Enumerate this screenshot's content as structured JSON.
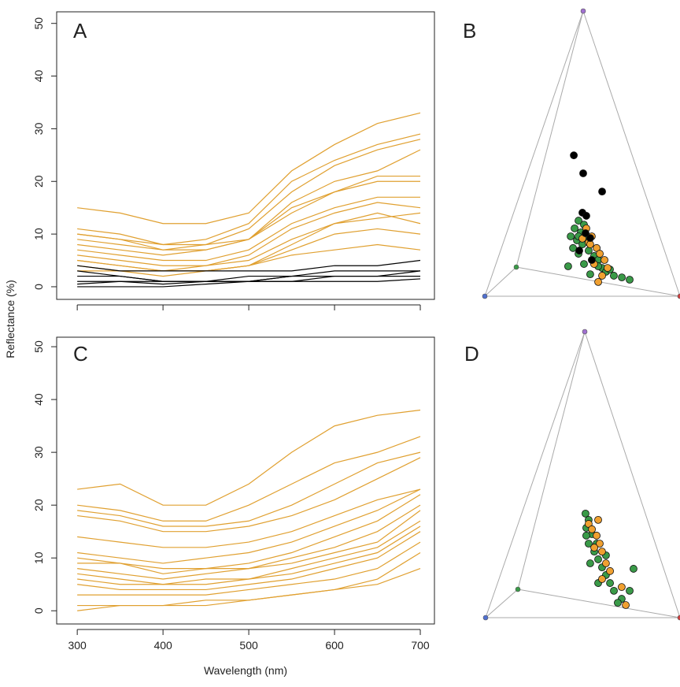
{
  "chart_data": [
    {
      "type": "line",
      "title": "A",
      "ylabel": "Reflectance (%)",
      "x": [
        300,
        350,
        400,
        450,
        500,
        550,
        600,
        650,
        700
      ],
      "xlim": [
        276,
        716.5
      ],
      "ylim": [
        -2.4,
        52.2
      ],
      "xticks": [
        300,
        400,
        500,
        600,
        700
      ],
      "xtick_labels": false,
      "yticks": [
        0,
        10,
        20,
        30,
        40,
        50
      ],
      "series": [
        {
          "color": "#e0a030",
          "values": [
            15,
            14,
            12,
            12,
            14,
            22,
            27,
            31,
            33
          ]
        },
        {
          "color": "#e0a030",
          "values": [
            11,
            10,
            8,
            9,
            12,
            20,
            24,
            27,
            29
          ]
        },
        {
          "color": "#e0a030",
          "values": [
            10,
            9,
            8,
            8,
            11,
            18,
            23,
            26,
            28
          ]
        },
        {
          "color": "#e0a030",
          "values": [
            9,
            8,
            7,
            7,
            9,
            16,
            20,
            22,
            26
          ]
        },
        {
          "color": "#e0a030",
          "values": [
            8,
            7,
            6,
            7,
            9,
            14,
            18,
            21,
            21
          ]
        },
        {
          "color": "#e0a030",
          "values": [
            7,
            6,
            5,
            5,
            7,
            12,
            15,
            17,
            17
          ]
        },
        {
          "color": "#e0a030",
          "values": [
            6,
            5,
            4,
            4,
            6,
            11,
            14,
            16,
            15
          ]
        },
        {
          "color": "#e0a030",
          "values": [
            5,
            4,
            3,
            4,
            5,
            9,
            12,
            13,
            14
          ]
        },
        {
          "color": "#e0a030",
          "values": [
            4,
            3,
            3,
            3,
            4,
            7,
            10,
            11,
            10
          ]
        },
        {
          "color": "#e0a030",
          "values": [
            3,
            3,
            2,
            3,
            4,
            6,
            7,
            8,
            7
          ]
        },
        {
          "color": "#e0a030",
          "values": [
            10,
            9,
            7,
            8,
            9,
            15,
            18,
            20,
            20
          ]
        },
        {
          "color": "#e0a030",
          "values": [
            5,
            4,
            3,
            3,
            4,
            8,
            12,
            14,
            12
          ]
        },
        {
          "color": "#000000",
          "values": [
            4,
            3,
            3,
            3,
            3,
            3,
            4,
            4,
            5
          ]
        },
        {
          "color": "#000000",
          "values": [
            2,
            2,
            1,
            1,
            2,
            2,
            3,
            3,
            3
          ]
        },
        {
          "color": "#000000",
          "values": [
            1,
            1,
            0.5,
            1,
            1,
            1,
            2,
            2,
            2
          ]
        },
        {
          "color": "#000000",
          "values": [
            0.5,
            1,
            1,
            1,
            1,
            2,
            2,
            2,
            3
          ]
        },
        {
          "color": "#000000",
          "values": [
            0,
            0,
            0,
            0.5,
            1,
            1,
            1,
            1,
            1.5
          ]
        },
        {
          "color": "#000000",
          "values": [
            3,
            2,
            1,
            1,
            1,
            2,
            2,
            2,
            2
          ]
        }
      ]
    },
    {
      "type": "scatter",
      "title": "B",
      "xlim": [
        0,
        1
      ],
      "ylim": [
        0,
        1
      ],
      "series": [
        {
          "color": "#3a9a48",
          "x": [
            0.48,
            0.508,
            0.46,
            0.492,
            0.52,
            0.472,
            0.5,
            0.452,
            0.532,
            0.48,
            0.56,
            0.581,
            0.508,
            0.427,
            0.601,
            0.621,
            0.54,
            0.661,
            0.702,
            0.742,
            0.48,
            0.44,
            0.581,
            0.641
          ],
          "values": [
            0.265,
            0.251,
            0.238,
            0.224,
            0.21,
            0.196,
            0.182,
            0.169,
            0.16,
            0.149,
            0.141,
            0.127,
            0.113,
            0.105,
            0.099,
            0.086,
            0.077,
            0.072,
            0.066,
            0.058,
            0.21,
            0.21,
            0.105,
            0.094
          ]
        },
        {
          "color": "#f0a030",
          "x": [
            0.52,
            0.548,
            0.532,
            0.573,
            0.589,
            0.56,
            0.613,
            0.629,
            0.601,
            0.581,
            0.54,
            0.5
          ],
          "values": [
            0.238,
            0.21,
            0.188,
            0.169,
            0.149,
            0.113,
            0.127,
            0.099,
            0.072,
            0.05,
            0.182,
            0.202
          ]
        },
        {
          "color": "#000000",
          "x": [
            0.456,
            0.504,
            0.601,
            0.5,
            0.52,
            0.484,
            0.548,
            0.54,
            0.516
          ],
          "values": [
            0.494,
            0.431,
            0.367,
            0.293,
            0.282,
            0.16,
            0.127,
            0.204,
            0.221
          ]
        }
      ]
    },
    {
      "type": "line",
      "title": "C",
      "xlabel": "Wavelength (nm)",
      "x": [
        300,
        350,
        400,
        450,
        500,
        550,
        600,
        650,
        700
      ],
      "xlim": [
        276,
        716.5
      ],
      "ylim": [
        -2.5,
        51.8
      ],
      "xticks": [
        300,
        400,
        500,
        600,
        700
      ],
      "xtick_labels": true,
      "yticks": [
        0,
        10,
        20,
        30,
        40,
        50
      ],
      "series": [
        {
          "color": "#e0a030",
          "values": [
            23,
            24,
            20,
            20,
            24,
            30,
            35,
            37,
            38
          ]
        },
        {
          "color": "#e0a030",
          "values": [
            20,
            19,
            17,
            17,
            20,
            24,
            28,
            30,
            33
          ]
        },
        {
          "color": "#e0a030",
          "values": [
            19,
            18,
            16,
            16,
            17,
            20,
            24,
            28,
            30
          ]
        },
        {
          "color": "#e0a030",
          "values": [
            18,
            17,
            15,
            15,
            16,
            18,
            21,
            25,
            29
          ]
        },
        {
          "color": "#e0a030",
          "values": [
            14,
            13,
            12,
            12,
            13,
            15,
            18,
            21,
            23
          ]
        },
        {
          "color": "#e0a030",
          "values": [
            11,
            10,
            9,
            10,
            11,
            13,
            16,
            19,
            23
          ]
        },
        {
          "color": "#e0a030",
          "values": [
            10,
            9,
            8,
            8,
            9,
            11,
            14,
            17,
            22
          ]
        },
        {
          "color": "#e0a030",
          "values": [
            9,
            9,
            7,
            8,
            8,
            10,
            12,
            15,
            20
          ]
        },
        {
          "color": "#e0a030",
          "values": [
            8,
            7,
            6,
            7,
            8,
            9,
            11,
            13,
            19
          ]
        },
        {
          "color": "#e0a030",
          "values": [
            7,
            6,
            5,
            6,
            6,
            8,
            10,
            12,
            17
          ]
        },
        {
          "color": "#e0a030",
          "values": [
            6,
            5,
            5,
            5,
            6,
            7,
            9,
            11,
            16
          ]
        },
        {
          "color": "#e0a030",
          "values": [
            5,
            4,
            4,
            4,
            5,
            6,
            8,
            10,
            15
          ]
        },
        {
          "color": "#e0a030",
          "values": [
            3,
            3,
            3,
            3,
            4,
            5,
            6,
            8,
            13
          ]
        },
        {
          "color": "#e0a030",
          "values": [
            1,
            1,
            1,
            2,
            2,
            3,
            4,
            6,
            11
          ]
        },
        {
          "color": "#e0a030",
          "values": [
            0,
            1,
            1,
            1,
            2,
            3,
            4,
            5,
            8
          ]
        }
      ]
    },
    {
      "type": "scatter",
      "title": "D",
      "xlim": [
        0,
        1
      ],
      "ylim": [
        0,
        1
      ],
      "series": [
        {
          "color": "#3a9a48",
          "x": [
            0.514,
            0.53,
            0.518,
            0.547,
            0.53,
            0.559,
            0.579,
            0.538,
            0.599,
            0.619,
            0.64,
            0.66,
            0.7,
            0.741,
            0.761,
            0.579,
            0.68,
            0.518,
            0.571,
            0.619
          ],
          "values": [
            0.364,
            0.342,
            0.314,
            0.292,
            0.259,
            0.231,
            0.204,
            0.19,
            0.176,
            0.149,
            0.121,
            0.094,
            0.066,
            0.094,
            0.171,
            0.121,
            0.052,
            0.287,
            0.259,
            0.218
          ]
        },
        {
          "color": "#f0a030",
          "x": [
            0.53,
            0.547,
            0.571,
            0.587,
            0.559,
            0.599,
            0.579,
            0.619,
            0.64,
            0.7,
            0.721,
            0.599
          ],
          "values": [
            0.328,
            0.309,
            0.287,
            0.259,
            0.245,
            0.231,
            0.342,
            0.19,
            0.163,
            0.107,
            0.044,
            0.135
          ]
        }
      ]
    }
  ]
}
